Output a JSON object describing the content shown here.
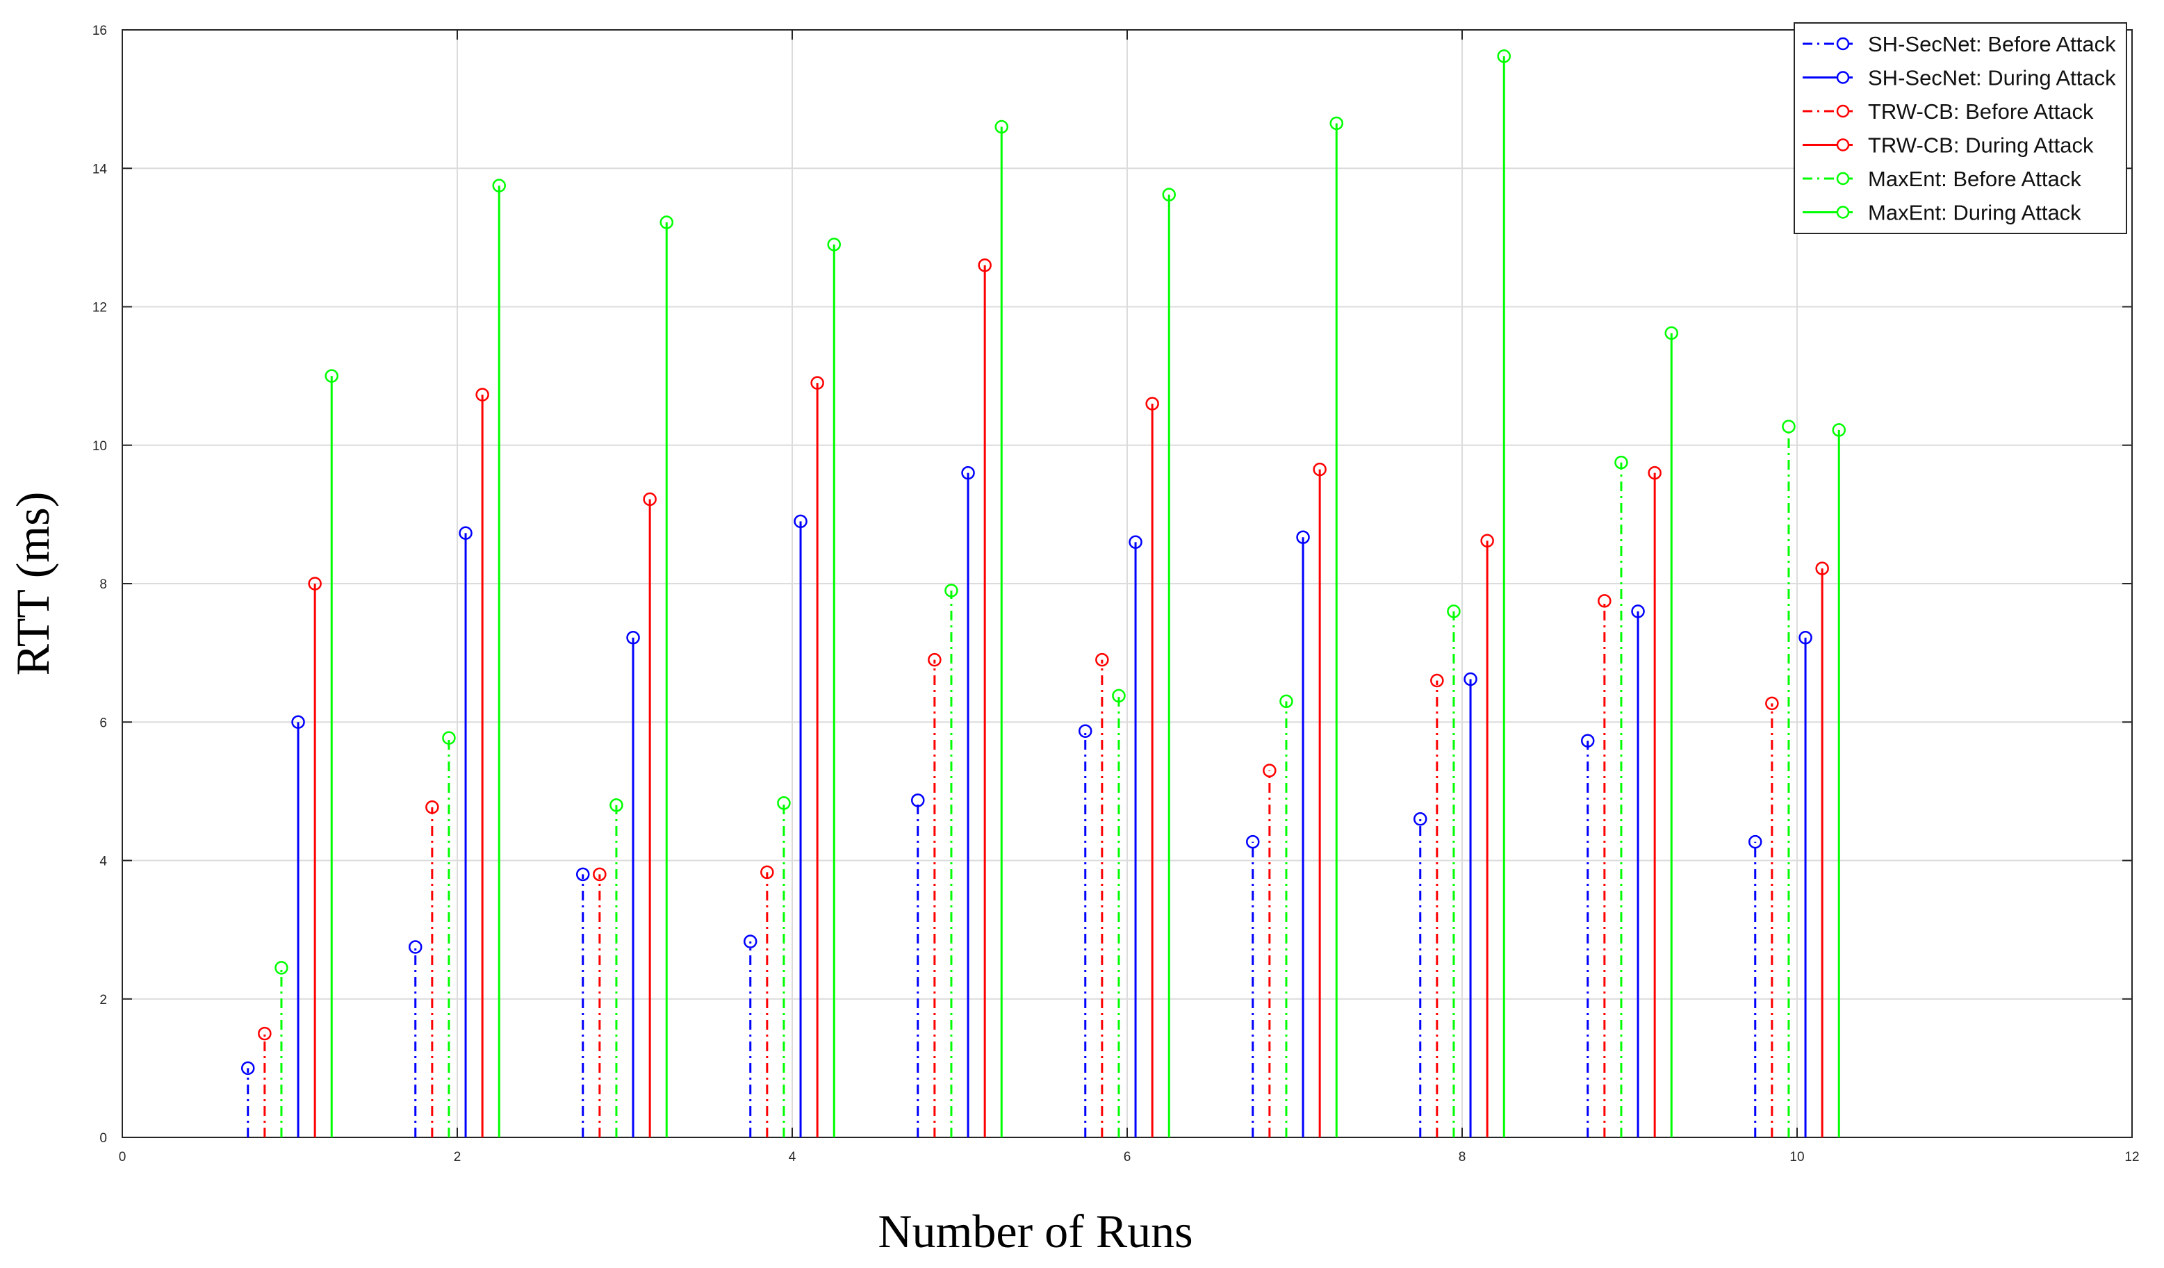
{
  "chart_data": {
    "type": "stem",
    "title": "",
    "xlabel": "Number of Runs",
    "ylabel": "RTT (ms)",
    "xlim": [
      0,
      12
    ],
    "ylim": [
      0,
      16
    ],
    "xticks": [
      0,
      2,
      4,
      6,
      8,
      10,
      12
    ],
    "yticks": [
      0,
      2,
      4,
      6,
      8,
      10,
      12,
      14,
      16
    ],
    "x": [
      1,
      2,
      3,
      4,
      5,
      6,
      7,
      8,
      9,
      10
    ],
    "group_offsets": [
      -0.25,
      -0.15,
      -0.05,
      0.05,
      0.15,
      0.25
    ],
    "grid": true,
    "legend_position": "top-right",
    "series": [
      {
        "name": "SH-SecNet: Before Attack",
        "color": "#0000ff",
        "line": "dashdot",
        "offset_index": 0,
        "values": [
          1.0,
          2.75,
          3.8,
          2.83,
          4.87,
          5.87,
          4.27,
          4.6,
          5.73,
          4.27
        ]
      },
      {
        "name": "SH-SecNet: During Attack",
        "color": "#0000ff",
        "line": "solid",
        "offset_index": 3,
        "values": [
          6.0,
          8.73,
          7.22,
          8.9,
          9.6,
          8.6,
          8.67,
          6.62,
          7.6,
          7.22
        ]
      },
      {
        "name": "TRW-CB: Before Attack",
        "color": "#ff0000",
        "line": "dashdot",
        "offset_index": 1,
        "values": [
          1.5,
          4.77,
          3.8,
          3.83,
          6.9,
          6.9,
          5.3,
          6.6,
          7.75,
          6.27
        ]
      },
      {
        "name": "TRW-CB: During Attack",
        "color": "#ff0000",
        "line": "solid",
        "offset_index": 4,
        "values": [
          8.0,
          10.73,
          9.22,
          10.9,
          12.6,
          10.6,
          9.65,
          8.62,
          9.6,
          8.22
        ]
      },
      {
        "name": "MaxEnt: Before Attack",
        "color": "#00ff00",
        "line": "dashdot",
        "offset_index": 2,
        "values": [
          2.45,
          5.77,
          4.8,
          4.83,
          7.9,
          6.38,
          6.3,
          7.6,
          9.75,
          10.27
        ]
      },
      {
        "name": "MaxEnt: During Attack",
        "color": "#00ff00",
        "line": "solid",
        "offset_index": 5,
        "values": [
          11.0,
          13.75,
          13.22,
          12.9,
          14.6,
          13.62,
          14.65,
          15.62,
          11.62,
          10.22
        ]
      }
    ]
  }
}
